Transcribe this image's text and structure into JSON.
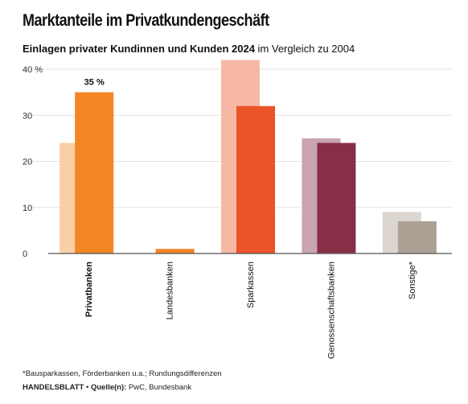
{
  "title": "Marktanteile im Privatkundengeschäft",
  "subtitle": {
    "bold": "Einlagen privater Kundinnen und Kunden 2024",
    "rest": " im Vergleich zu 2004"
  },
  "footnote": "*Bausparkassen, Förderbanken u.a.; Rundungsdifferenzen",
  "source": {
    "brand": "HANDELSBLATT",
    "separator": " • ",
    "label": "Quelle(n):",
    "text": " PwC, Bundesbank"
  },
  "chart_data": {
    "type": "bar",
    "categories": [
      "Privatbanken",
      "Landesbanken",
      "Sparkassen",
      "Genossenschaftsbanken",
      "Sonstige*"
    ],
    "highlighted_category": "Privatbanken",
    "series": [
      {
        "values": [
          24,
          0,
          42,
          25,
          9
        ]
      },
      {
        "values": [
          35,
          1,
          32,
          24,
          7
        ]
      }
    ],
    "colors_2004": [
      "#fbcfa5",
      "#fbcfa5",
      "#f6b8a5",
      "#c9a4b1",
      "#dcd6d1"
    ],
    "colors_2024": [
      "#f28524",
      "#f28524",
      "#ea5426",
      "#862f47",
      "#aca195"
    ],
    "y_ticks": [
      "0",
      "10",
      "20",
      "30",
      "40 %"
    ],
    "y_tick_values": [
      0,
      10,
      20,
      30,
      40
    ],
    "ylim": [
      0,
      40
    ],
    "data_labels": [
      {
        "category": "Privatbanken",
        "series": 1,
        "text": "35 %"
      }
    ],
    "grid": true,
    "legend": "none"
  }
}
